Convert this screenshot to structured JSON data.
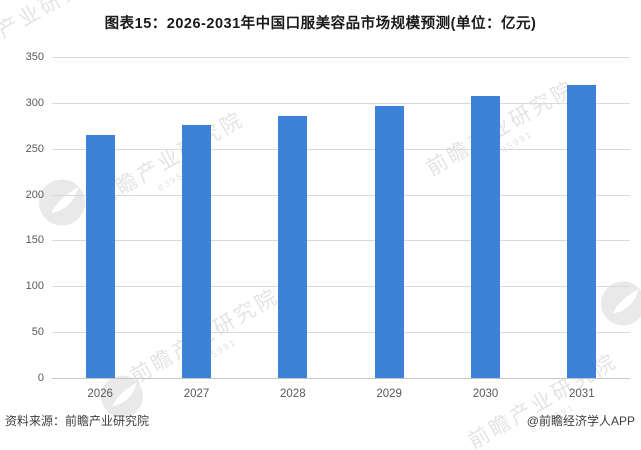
{
  "title": "图表15：2026-2031年中国口服美容品市场规模预测(单位：亿元)",
  "footer": {
    "source_note": "资料来源：前瞻产业研究院",
    "credit": "@前瞻经济学人APP"
  },
  "watermark": {
    "text": "前瞻产业研究院",
    "subtext": "8395991"
  },
  "colors": {
    "bar": "#3b82d8",
    "gridline": "#d9d9d9",
    "tick_label": "#595959",
    "title": "#1a1a1a",
    "footer_text": "#3d3d3d",
    "watermark": "#b9b9b9"
  },
  "chart_data": {
    "type": "bar",
    "categories": [
      "2026",
      "2027",
      "2028",
      "2029",
      "2030",
      "2031"
    ],
    "values": [
      265,
      276,
      286,
      297,
      308,
      320
    ],
    "title": "图表15：2026-2031年中国口服美容品市场规模预测(单位：亿元)",
    "xlabel": "",
    "ylabel": "",
    "unit": "亿元",
    "ylim": [
      0,
      350
    ],
    "ytick_step": 50,
    "grid": true,
    "legend": false,
    "bar_color": "#3b82d8"
  }
}
